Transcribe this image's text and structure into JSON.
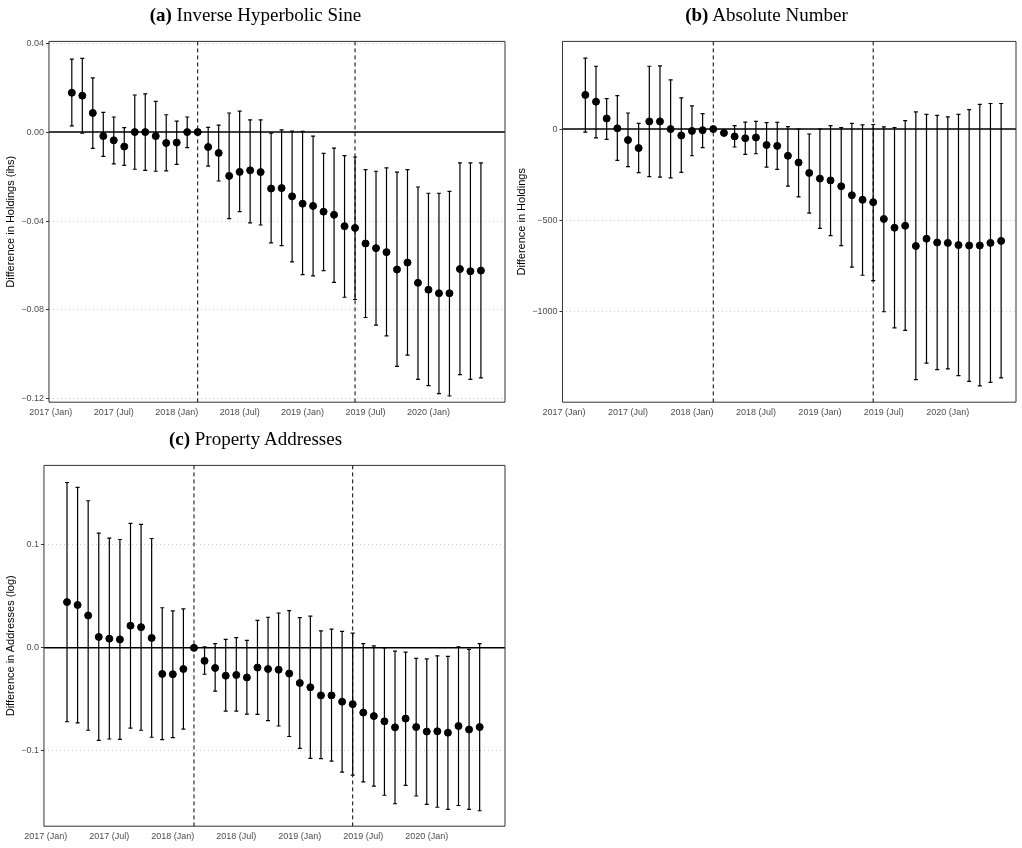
{
  "chart_data": [
    {
      "type": "scatter",
      "title": "(a) Inverse Hyperbolic Sine",
      "ylabel": "Difference in Holdings (ihs)",
      "color": "#000000",
      "marker": "circle",
      "grid": "y",
      "x": [
        "2017-03",
        "2017-04",
        "2017-05",
        "2017-06",
        "2017-07",
        "2017-08",
        "2017-09",
        "2017-10",
        "2017-11",
        "2017-12",
        "2018-01",
        "2018-02",
        "2018-03",
        "2018-04",
        "2018-05",
        "2018-06",
        "2018-07",
        "2018-08",
        "2018-09",
        "2018-10",
        "2018-11",
        "2018-12",
        "2019-01",
        "2019-02",
        "2019-03",
        "2019-04",
        "2019-05",
        "2019-06",
        "2019-07",
        "2019-08",
        "2019-09",
        "2019-10",
        "2019-11",
        "2019-12",
        "2020-01",
        "2020-02",
        "2020-03",
        "2020-04",
        "2020-05",
        "2020-06"
      ],
      "values": [
        0.0177,
        0.0164,
        0.0086,
        -0.0018,
        -0.0037,
        -0.0065,
        0,
        0,
        -0.0018,
        -0.0049,
        -0.0047,
        0,
        0,
        -0.0067,
        -0.0094,
        -0.0197,
        -0.0179,
        -0.0172,
        -0.018,
        -0.0254,
        -0.0252,
        -0.0289,
        -0.0322,
        -0.0332,
        -0.0358,
        -0.0372,
        -0.0423,
        -0.0431,
        -0.0501,
        -0.0522,
        -0.054,
        -0.0618,
        -0.0587,
        -0.0678,
        -0.0709,
        -0.0725,
        -0.0725,
        -0.0616,
        -0.0626,
        -0.0623
      ],
      "errors": [
        [
          0.0028,
          0.0328
        ],
        [
          -0.0005,
          0.0332
        ],
        [
          -0.0073,
          0.0244
        ],
        [
          -0.0109,
          0.0089
        ],
        [
          -0.0143,
          0.0068
        ],
        [
          -0.015,
          0.002
        ],
        [
          -0.0167,
          0.0167
        ],
        [
          -0.0172,
          0.0172
        ],
        [
          -0.0176,
          0.0138
        ],
        [
          -0.0174,
          0.0078
        ],
        [
          -0.0145,
          0.0049
        ],
        [
          -0.007,
          0.0068
        ],
        null,
        [
          -0.0153,
          0.0021
        ],
        [
          -0.022,
          0.0031
        ],
        [
          -0.0389,
          0.0086
        ],
        [
          -0.0358,
          0.0094
        ],
        [
          -0.0408,
          0.0055
        ],
        [
          -0.0418,
          0.0055
        ],
        [
          -0.0498,
          -0.0005
        ],
        [
          -0.0511,
          0.001
        ],
        [
          -0.0584,
          0.0005
        ],
        [
          -0.0641,
          0.0003
        ],
        [
          -0.0647,
          -0.0018
        ],
        [
          -0.0623,
          -0.0096
        ],
        [
          -0.0676,
          -0.0072
        ],
        [
          -0.0743,
          -0.0106
        ],
        [
          -0.0753,
          -0.0112
        ],
        [
          -0.0834,
          -0.0169
        ],
        [
          -0.0868,
          -0.0176
        ],
        [
          -0.0917,
          -0.0161
        ],
        [
          -0.1054,
          -0.018
        ],
        [
          -0.1003,
          -0.0169
        ],
        [
          -0.1112,
          -0.0247
        ],
        [
          -0.114,
          -0.0275
        ],
        [
          -0.1176,
          -0.0275
        ],
        [
          -0.1187,
          -0.0267
        ],
        [
          -0.1091,
          -0.0138
        ],
        [
          -0.1112,
          -0.0138
        ],
        [
          -0.1106,
          -0.0138
        ]
      ],
      "xlim": [
        "2016-12-26",
        "2020-08-10"
      ],
      "xticks": [
        {
          "value": "2017-01",
          "label": "2017 (Jan)"
        },
        {
          "value": "2017-07",
          "label": "2017 (Jul)"
        },
        {
          "value": "2018-01",
          "label": "2018 (Jan)"
        },
        {
          "value": "2018-07",
          "label": "2018 (Jul)"
        },
        {
          "value": "2019-01",
          "label": "2019 (Jan)"
        },
        {
          "value": "2019-07",
          "label": "2019 (Jul)"
        },
        {
          "value": "2020-01",
          "label": "2020 (Jan)"
        }
      ],
      "ylim": [
        -0.1215,
        0.0408
      ],
      "yticks": [
        {
          "value": -0.12,
          "label": "−0.12"
        },
        {
          "value": -0.08,
          "label": "−0.08"
        },
        {
          "value": -0.04,
          "label": "−0.04"
        },
        {
          "value": 0,
          "label": "0.00"
        },
        {
          "value": 0.04,
          "label": "0.04"
        }
      ],
      "ref_lines": [
        {
          "axis": "y",
          "value": 0,
          "color": "#000000",
          "line_style": "solid"
        },
        {
          "axis": "x",
          "value": "2018-03",
          "color": "#000000",
          "line_style": "dashed"
        },
        {
          "axis": "x",
          "value": "2019-06",
          "color": "#000000",
          "line_style": "dashed"
        }
      ]
    },
    {
      "type": "scatter",
      "title": "(b) Absolute Number",
      "ylabel": "Difference in Holdings",
      "color": "#000000",
      "marker": "circle",
      "grid": "y",
      "x": [
        "2017-03",
        "2017-04",
        "2017-05",
        "2017-06",
        "2017-07",
        "2017-08",
        "2017-09",
        "2017-10",
        "2017-11",
        "2017-12",
        "2018-01",
        "2018-02",
        "2018-03",
        "2018-04",
        "2018-05",
        "2018-06",
        "2018-07",
        "2018-08",
        "2018-09",
        "2018-10",
        "2018-11",
        "2018-12",
        "2019-01",
        "2019-02",
        "2019-03",
        "2019-04",
        "2019-05",
        "2019-06",
        "2019-07",
        "2019-08",
        "2019-09",
        "2019-10",
        "2019-11",
        "2019-12",
        "2020-01",
        "2020-02",
        "2020-03",
        "2020-04",
        "2020-05",
        "2020-06"
      ],
      "values": [
        187,
        150,
        58,
        4,
        -60,
        -104,
        42,
        42,
        0,
        -35,
        -10,
        -6,
        0,
        -21,
        -40,
        -50,
        -46,
        -87,
        -92,
        -146,
        -183,
        -240,
        -271,
        -281,
        -313,
        -362,
        -387,
        -400,
        -492,
        -540,
        -529,
        -640,
        -600,
        -621,
        -623,
        -635,
        -637,
        -637,
        -623,
        -612
      ],
      "errors": [
        [
          -17,
          388
        ],
        [
          -48,
          344
        ],
        [
          -56,
          167
        ],
        [
          -171,
          183
        ],
        [
          -206,
          88
        ],
        [
          -238,
          31
        ],
        [
          -260,
          344
        ],
        [
          -263,
          346
        ],
        [
          -267,
          269
        ],
        [
          -237,
          171
        ],
        [
          -146,
          127
        ],
        [
          -102,
          85
        ],
        null,
        null,
        [
          -98,
          19
        ],
        [
          -138,
          38
        ],
        [
          -135,
          42
        ],
        [
          -208,
          35
        ],
        [
          -221,
          37
        ],
        [
          -312,
          13
        ],
        [
          -371,
          0
        ],
        [
          -460,
          -27
        ],
        [
          -544,
          0
        ],
        [
          -583,
          19
        ],
        [
          -638,
          8
        ],
        [
          -756,
          31
        ],
        [
          -800,
          23
        ],
        [
          -829,
          25
        ],
        [
          -1000,
          12
        ],
        [
          -1088,
          8
        ],
        [
          -1102,
          46
        ],
        [
          -1371,
          94
        ],
        [
          -1281,
          81
        ],
        [
          -1317,
          75
        ],
        [
          -1313,
          67
        ],
        [
          -1350,
          81
        ],
        [
          -1381,
          106
        ],
        [
          -1406,
          135
        ],
        [
          -1387,
          140
        ],
        [
          -1362,
          140
        ]
      ],
      "xlim": [
        "2016-12-27",
        "2020-07-13"
      ],
      "xticks": [
        {
          "value": "2017-01",
          "label": "2017 (Jan)"
        },
        {
          "value": "2017-07",
          "label": "2017 (Jul)"
        },
        {
          "value": "2018-01",
          "label": "2018 (Jan)"
        },
        {
          "value": "2018-07",
          "label": "2018 (Jul)"
        },
        {
          "value": "2019-01",
          "label": "2019 (Jan)"
        },
        {
          "value": "2019-07",
          "label": "2019 (Jul)"
        },
        {
          "value": "2020-01",
          "label": "2020 (Jan)"
        }
      ],
      "ylim": [
        -1495,
        480
      ],
      "yticks": [
        {
          "value": -1000,
          "label": "−1000"
        },
        {
          "value": -500,
          "label": "−500"
        },
        0
      ],
      "ref_lines": [
        {
          "axis": "y",
          "value": 0,
          "color": "#000000",
          "line_style": "solid"
        },
        {
          "axis": "x",
          "value": "2018-03",
          "color": "#000000",
          "line_style": "dashed"
        },
        {
          "axis": "x",
          "value": "2019-06",
          "color": "#000000",
          "line_style": "dashed"
        }
      ]
    },
    {
      "type": "scatter",
      "title": "(c) Property Addresses",
      "ylabel": "Difference in Addresses (log)",
      "color": "#000000",
      "marker": "circle",
      "grid": "y",
      "x": [
        "2017-03",
        "2017-04",
        "2017-05",
        "2017-06",
        "2017-07",
        "2017-08",
        "2017-09",
        "2017-10",
        "2017-11",
        "2017-12",
        "2018-01",
        "2018-02",
        "2018-03",
        "2018-04",
        "2018-05",
        "2018-06",
        "2018-07",
        "2018-08",
        "2018-09",
        "2018-10",
        "2018-11",
        "2018-12",
        "2019-01",
        "2019-02",
        "2019-03",
        "2019-04",
        "2019-05",
        "2019-06",
        "2019-07",
        "2019-08",
        "2019-09",
        "2019-10",
        "2019-11",
        "2019-12",
        "2020-01",
        "2020-02",
        "2020-03",
        "2020-04",
        "2020-05",
        "2020-06"
      ],
      "values": [
        0.0444,
        0.0416,
        0.0314,
        0.0106,
        0.0089,
        0.0082,
        0.0215,
        0.0201,
        0.0096,
        -0.0253,
        -0.0256,
        -0.0205,
        0,
        -0.0126,
        -0.0195,
        -0.027,
        -0.0263,
        -0.0287,
        -0.0191,
        -0.0205,
        -0.0212,
        -0.0249,
        -0.0341,
        -0.0382,
        -0.0461,
        -0.0461,
        -0.0522,
        -0.0546,
        -0.0628,
        -0.0662,
        -0.0713,
        -0.0771,
        -0.0686,
        -0.0768,
        -0.0812,
        -0.0809,
        -0.0823,
        -0.0758,
        -0.0792,
        -0.0768
      ],
      "errors": [
        [
          -0.0717,
          0.1604
        ],
        [
          -0.0727,
          0.1556
        ],
        [
          -0.0799,
          0.1427
        ],
        [
          -0.0898,
          0.1113
        ],
        [
          -0.0884,
          0.1065
        ],
        [
          -0.0887,
          0.1051
        ],
        [
          -0.0778,
          0.1208
        ],
        [
          -0.0799,
          0.1198
        ],
        [
          -0.0867,
          0.1061
        ],
        [
          -0.0891,
          0.0389
        ],
        [
          -0.087,
          0.0358
        ],
        [
          -0.0788,
          0.0379
        ],
        null,
        [
          -0.0256,
          0.001
        ],
        [
          -0.042,
          0.0041
        ],
        [
          -0.0614,
          0.0082
        ],
        [
          -0.0614,
          0.0099
        ],
        [
          -0.0642,
          0.0072
        ],
        [
          -0.0645,
          0.0266
        ],
        [
          -0.0706,
          0.0297
        ],
        [
          -0.0758,
          0.0338
        ],
        [
          -0.086,
          0.0362
        ],
        [
          -0.0976,
          0.0294
        ],
        [
          -0.1072,
          0.0307
        ],
        [
          -0.1075,
          0.0164
        ],
        [
          -0.1099,
          0.0181
        ],
        [
          -0.1205,
          0.016
        ],
        [
          -0.1235,
          0.0143
        ],
        [
          -0.13,
          0.0041
        ],
        [
          -0.1341,
          0.002
        ],
        [
          -0.143,
          0
        ],
        [
          -0.1512,
          -0.0031
        ],
        [
          -0.1334,
          -0.0041
        ],
        [
          -0.1437,
          -0.0102
        ],
        [
          -0.1519,
          -0.0106
        ],
        [
          -0.1546,
          -0.0078
        ],
        [
          -0.1567,
          -0.0082
        ],
        [
          -0.1529,
          0.001
        ],
        [
          -0.1567,
          -0.0014
        ],
        [
          -0.158,
          0.0041
        ]
      ],
      "xlim": [
        "2016-12-26",
        "2020-08-13"
      ],
      "xticks": [
        {
          "value": "2017-01",
          "label": "2017 (Jan)"
        },
        {
          "value": "2017-07",
          "label": "2017 (Jul)"
        },
        {
          "value": "2018-01",
          "label": "2018 (Jan)"
        },
        {
          "value": "2018-07",
          "label": "2018 (Jul)"
        },
        {
          "value": "2019-01",
          "label": "2019 (Jan)"
        },
        {
          "value": "2019-07",
          "label": "2019 (Jul)"
        },
        {
          "value": "2020-01",
          "label": "2020 (Jan)"
        }
      ],
      "ylim": [
        -0.173,
        0.177
      ],
      "yticks": [
        {
          "value": -0.1,
          "label": "−0.1"
        },
        {
          "value": 0,
          "label": "0.0"
        },
        {
          "value": 0.1,
          "label": "0.1"
        }
      ],
      "ref_lines": [
        {
          "axis": "y",
          "value": 0,
          "color": "#000000",
          "line_style": "solid"
        },
        {
          "axis": "x",
          "value": "2018-03",
          "color": "#000000",
          "line_style": "dashed"
        },
        {
          "axis": "x",
          "value": "2019-06",
          "color": "#000000",
          "line_style": "dashed"
        }
      ]
    }
  ]
}
